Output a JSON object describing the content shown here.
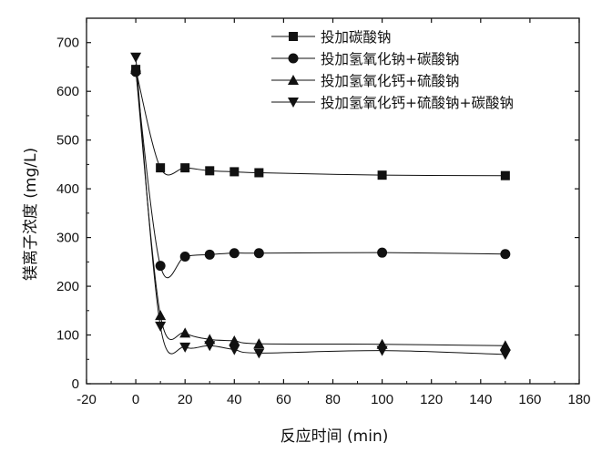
{
  "chart_data": {
    "type": "line",
    "title": "",
    "xlabel": "反应时间 (min)",
    "ylabel": "镁离子浓度 (mg/L)",
    "xlim": [
      -20,
      180
    ],
    "ylim": [
      0,
      750
    ],
    "xticks": [
      -20,
      0,
      20,
      40,
      60,
      80,
      100,
      120,
      140,
      160,
      180
    ],
    "yticks": [
      0,
      100,
      200,
      300,
      400,
      500,
      600,
      700
    ],
    "grid": false,
    "legend_position": "top-right",
    "series": [
      {
        "name": "投加碳酸钠",
        "marker": "square",
        "x": [
          0,
          10,
          20,
          30,
          40,
          50,
          100,
          150
        ],
        "y": [
          645,
          443,
          443,
          437,
          435,
          433,
          428,
          427
        ]
      },
      {
        "name": "投加氢氧化钠+碳酸钠",
        "marker": "circle",
        "x": [
          0,
          10,
          20,
          30,
          40,
          50,
          100,
          150
        ],
        "y": [
          640,
          242,
          261,
          265,
          268,
          268,
          269,
          266
        ]
      },
      {
        "name": "投加氢氧化钙+硫酸钠",
        "marker": "triangle-up",
        "x": [
          0,
          10,
          20,
          30,
          40,
          50,
          100,
          150
        ],
        "y": [
          645,
          140,
          104,
          91,
          88,
          82,
          81,
          78
        ]
      },
      {
        "name": "投加氢氧化钙+硫酸钠+碳酸钠",
        "marker": "triangle-down",
        "x": [
          0,
          10,
          20,
          30,
          40,
          50,
          100,
          150
        ],
        "y": [
          670,
          118,
          75,
          78,
          70,
          63,
          68,
          60
        ]
      }
    ]
  }
}
